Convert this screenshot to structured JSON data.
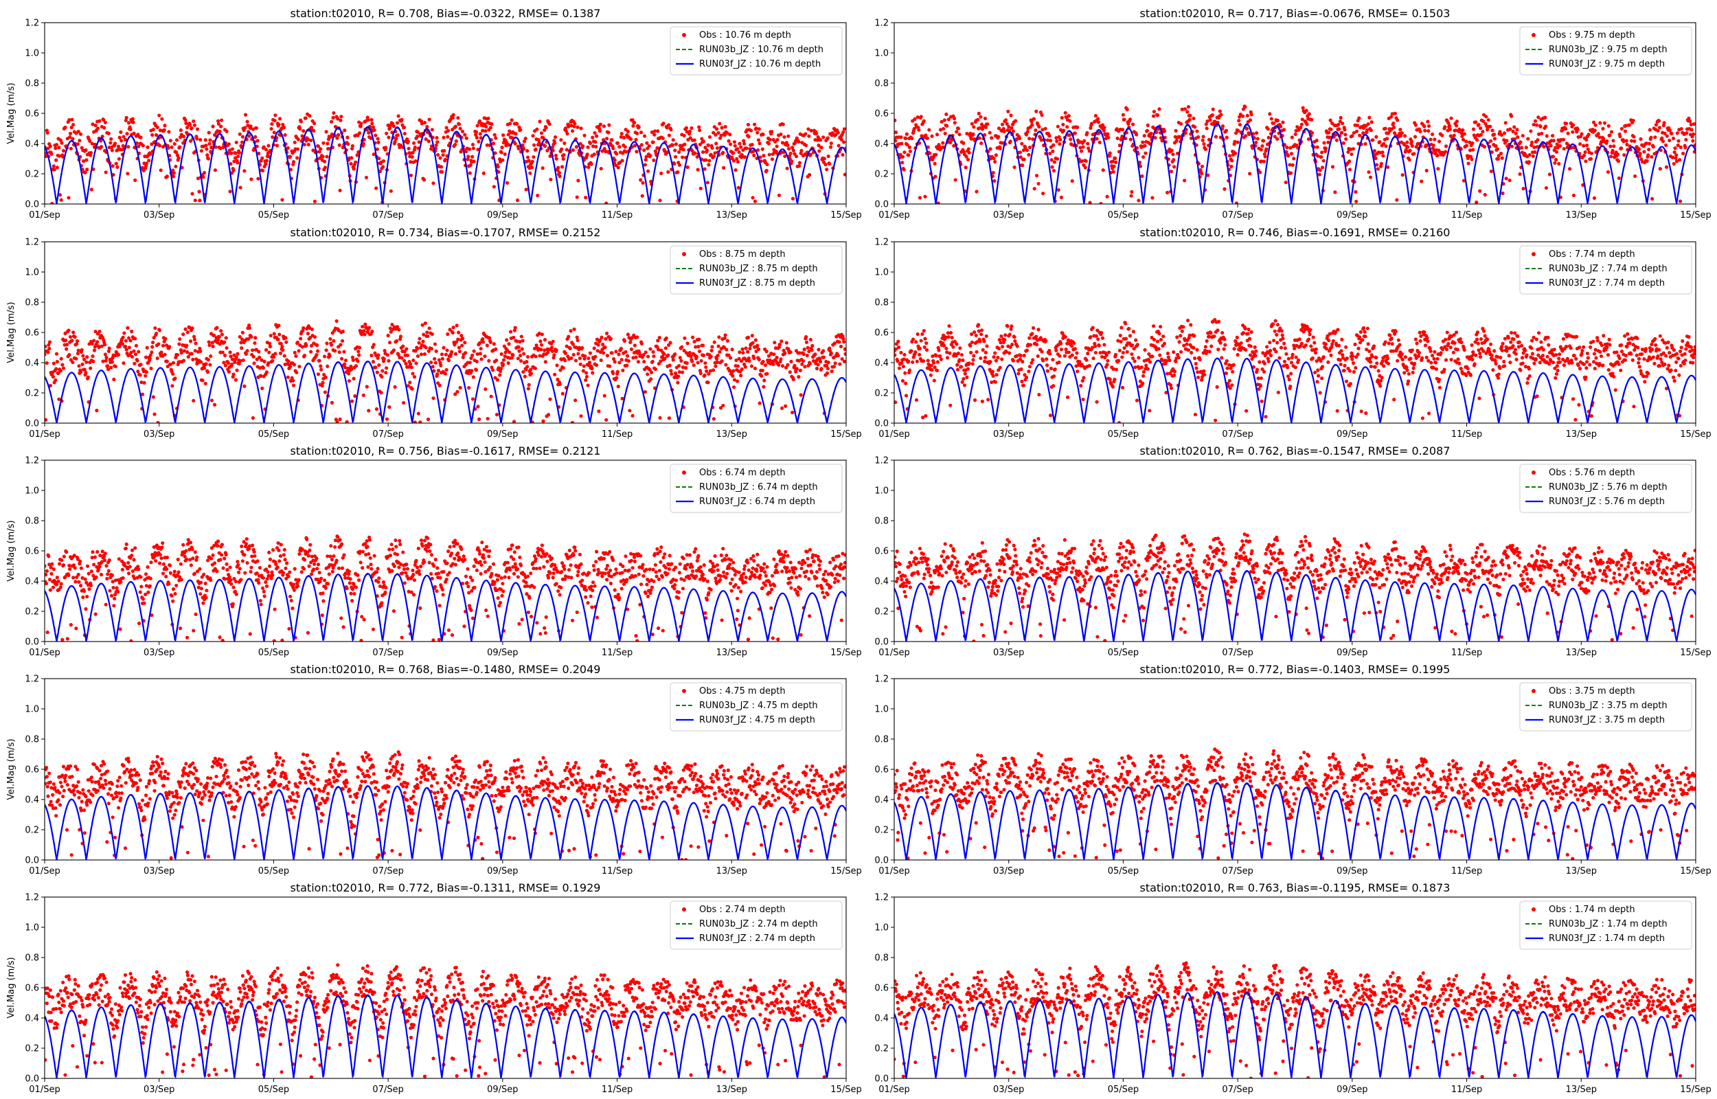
{
  "figure": {
    "ylabel": "Vel.Mag (m/s)",
    "xtick_labels": [
      "01/Sep",
      "03/Sep",
      "05/Sep",
      "07/Sep",
      "09/Sep",
      "11/Sep",
      "13/Sep",
      "15/Sep"
    ],
    "ytick_labels": [
      "0.0",
      "0.2",
      "0.4",
      "0.6",
      "0.8",
      "1.0",
      "1.2"
    ]
  },
  "colors": {
    "obs": "#ff0000",
    "run03b": "#008000",
    "run03f": "#0000ff"
  },
  "chart_data": [
    {
      "type": "scatter",
      "title": "station:t02010, R= 0.708, Bias=-0.0322, RMSE= 0.1387",
      "xlabel": "",
      "ylabel": "Vel.Mag (m/s)",
      "xlim": [
        "01/Sep",
        "15/Sep"
      ],
      "ylim": [
        0,
        1.2
      ],
      "legend_position": "upper-right",
      "obs_mean": 0.37,
      "obs_amp": 0.22,
      "model_peak": 0.5,
      "series": [
        {
          "name": "Obs : 10.76 m depth",
          "style": "red-dots"
        },
        {
          "name": "RUN03b_JZ : 10.76 m depth",
          "style": "green-dashed"
        },
        {
          "name": "RUN03f_JZ : 10.76 m depth",
          "style": "blue-solid"
        }
      ]
    },
    {
      "type": "scatter",
      "title": "station:t02010, R= 0.717, Bias=-0.0676, RMSE= 0.1503",
      "xlabel": "",
      "ylabel": "",
      "xlim": [
        "01/Sep",
        "15/Sep"
      ],
      "ylim": [
        0,
        1.2
      ],
      "legend_position": "upper-right",
      "obs_mean": 0.4,
      "obs_amp": 0.24,
      "model_peak": 0.52,
      "series": [
        {
          "name": "Obs : 9.75 m depth",
          "style": "red-dots"
        },
        {
          "name": "RUN03b_JZ : 9.75 m depth",
          "style": "green-dashed"
        },
        {
          "name": "RUN03f_JZ : 9.75 m depth",
          "style": "blue-solid"
        }
      ]
    },
    {
      "type": "scatter",
      "title": "station:t02010, R= 0.734, Bias=-0.1707, RMSE= 0.2152",
      "xlabel": "",
      "ylabel": "Vel.Mag (m/s)",
      "xlim": [
        "01/Sep",
        "15/Sep"
      ],
      "ylim": [
        0,
        1.2
      ],
      "legend_position": "upper-right",
      "obs_mean": 0.42,
      "obs_amp": 0.24,
      "model_peak": 0.4,
      "series": [
        {
          "name": "Obs : 8.75 m depth",
          "style": "red-dots"
        },
        {
          "name": "RUN03b_JZ : 8.75 m depth",
          "style": "green-dashed"
        },
        {
          "name": "RUN03f_JZ : 8.75 m depth",
          "style": "blue-solid"
        }
      ]
    },
    {
      "type": "scatter",
      "title": "station:t02010, R= 0.746, Bias=-0.1691, RMSE= 0.2160",
      "xlabel": "",
      "ylabel": "",
      "xlim": [
        "01/Sep",
        "15/Sep"
      ],
      "ylim": [
        0,
        1.2
      ],
      "legend_position": "upper-right",
      "obs_mean": 0.43,
      "obs_amp": 0.24,
      "model_peak": 0.42,
      "series": [
        {
          "name": "Obs : 7.74 m depth",
          "style": "red-dots"
        },
        {
          "name": "RUN03b_JZ : 7.74 m depth",
          "style": "green-dashed"
        },
        {
          "name": "RUN03f_JZ : 7.74 m depth",
          "style": "blue-solid"
        }
      ]
    },
    {
      "type": "scatter",
      "title": "station:t02010, R= 0.756, Bias=-0.1617, RMSE= 0.2121",
      "xlabel": "",
      "ylabel": "Vel.Mag (m/s)",
      "xlim": [
        "01/Sep",
        "15/Sep"
      ],
      "ylim": [
        0,
        1.2
      ],
      "legend_position": "upper-right",
      "obs_mean": 0.44,
      "obs_amp": 0.25,
      "model_peak": 0.44,
      "series": [
        {
          "name": "Obs : 6.74 m depth",
          "style": "red-dots"
        },
        {
          "name": "RUN03b_JZ : 6.74 m depth",
          "style": "green-dashed"
        },
        {
          "name": "RUN03f_JZ : 6.74 m depth",
          "style": "blue-solid"
        }
      ]
    },
    {
      "type": "scatter",
      "title": "station:t02010, R= 0.762, Bias=-0.1547, RMSE= 0.2087",
      "xlabel": "",
      "ylabel": "",
      "xlim": [
        "01/Sep",
        "15/Sep"
      ],
      "ylim": [
        0,
        1.2
      ],
      "legend_position": "upper-right",
      "obs_mean": 0.45,
      "obs_amp": 0.25,
      "model_peak": 0.46,
      "series": [
        {
          "name": "Obs : 5.76 m depth",
          "style": "red-dots"
        },
        {
          "name": "RUN03b_JZ : 5.76 m depth",
          "style": "green-dashed"
        },
        {
          "name": "RUN03f_JZ : 5.76 m depth",
          "style": "blue-solid"
        }
      ]
    },
    {
      "type": "scatter",
      "title": "station:t02010, R= 0.768, Bias=-0.1480, RMSE= 0.2049",
      "xlabel": "",
      "ylabel": "Vel.Mag (m/s)",
      "xlim": [
        "01/Sep",
        "15/Sep"
      ],
      "ylim": [
        0,
        1.2
      ],
      "legend_position": "upper-right",
      "obs_mean": 0.46,
      "obs_amp": 0.26,
      "model_peak": 0.48,
      "series": [
        {
          "name": "Obs : 4.75 m depth",
          "style": "red-dots"
        },
        {
          "name": "RUN03b_JZ : 4.75 m depth",
          "style": "green-dashed"
        },
        {
          "name": "RUN03f_JZ : 4.75 m depth",
          "style": "blue-solid"
        }
      ]
    },
    {
      "type": "scatter",
      "title": "station:t02010, R= 0.772, Bias=-0.1403, RMSE= 0.1995",
      "xlabel": "",
      "ylabel": "",
      "xlim": [
        "01/Sep",
        "15/Sep"
      ],
      "ylim": [
        0,
        1.2
      ],
      "legend_position": "upper-right",
      "obs_mean": 0.47,
      "obs_amp": 0.26,
      "model_peak": 0.5,
      "series": [
        {
          "name": "Obs : 3.75 m depth",
          "style": "red-dots"
        },
        {
          "name": "RUN03b_JZ : 3.75 m depth",
          "style": "green-dashed"
        },
        {
          "name": "RUN03f_JZ : 3.75 m depth",
          "style": "blue-solid"
        }
      ]
    },
    {
      "type": "scatter",
      "title": "station:t02010, R= 0.772, Bias=-0.1311, RMSE= 0.1929",
      "xlabel": "",
      "ylabel": "Vel.Mag (m/s)",
      "xlim": [
        "01/Sep",
        "15/Sep"
      ],
      "ylim": [
        0,
        1.2
      ],
      "legend_position": "upper-right",
      "obs_mean": 0.48,
      "obs_amp": 0.27,
      "model_peak": 0.54,
      "series": [
        {
          "name": "Obs : 2.74 m depth",
          "style": "red-dots"
        },
        {
          "name": "RUN03b_JZ : 2.74 m depth",
          "style": "green-dashed"
        },
        {
          "name": "RUN03f_JZ : 2.74 m depth",
          "style": "blue-solid"
        }
      ]
    },
    {
      "type": "scatter",
      "title": "station:t02010, R= 0.763, Bias=-0.1195, RMSE= 0.1873",
      "xlabel": "",
      "ylabel": "",
      "xlim": [
        "01/Sep",
        "15/Sep"
      ],
      "ylim": [
        0,
        1.2
      ],
      "legend_position": "upper-right",
      "obs_mean": 0.49,
      "obs_amp": 0.27,
      "model_peak": 0.56,
      "series": [
        {
          "name": "Obs : 1.74 m depth",
          "style": "red-dots"
        },
        {
          "name": "RUN03b_JZ : 1.74 m depth",
          "style": "green-dashed"
        },
        {
          "name": "RUN03f_JZ : 1.74 m depth",
          "style": "blue-solid"
        }
      ]
    }
  ]
}
